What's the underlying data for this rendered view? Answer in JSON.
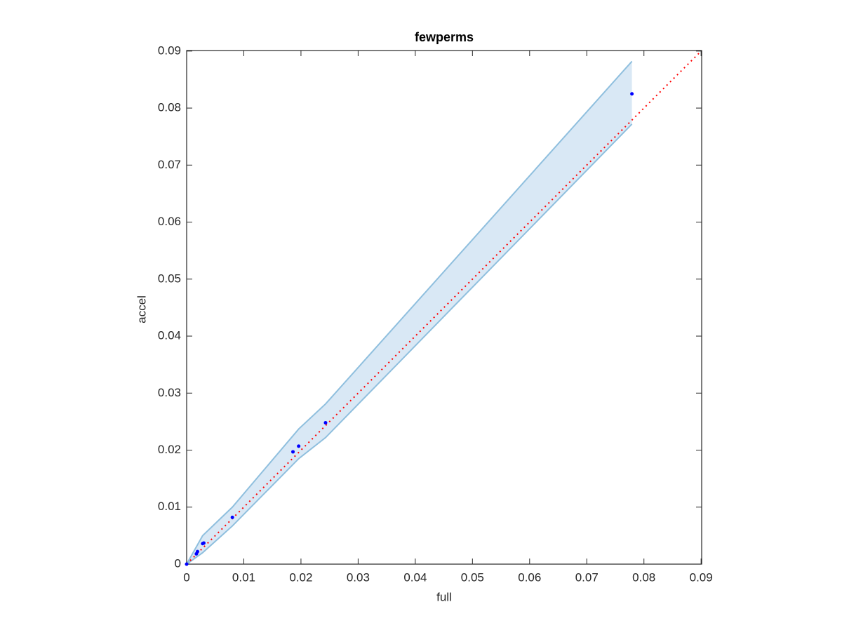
{
  "chart_data": {
    "type": "scatter",
    "title": "fewperms",
    "x_label": "full",
    "y_label": "accel",
    "xlim": [
      0,
      0.0901
    ],
    "ylim": [
      0,
      0.0901
    ],
    "xticks": [
      0,
      0.01,
      0.02,
      0.03,
      0.04,
      0.05,
      0.06,
      0.07,
      0.08,
      0.09
    ],
    "yticks": [
      0,
      0.01,
      0.02,
      0.03,
      0.04,
      0.05,
      0.06,
      0.07,
      0.08,
      0.09
    ],
    "band": {
      "color": "#8fbfde",
      "x": [
        0,
        0.0028,
        0.008,
        0.0196,
        0.0243,
        0.0779
      ],
      "lower": [
        0,
        0.002,
        0.0067,
        0.0185,
        0.0222,
        0.0772
      ],
      "upper": [
        0,
        0.005,
        0.01,
        0.0237,
        0.0281,
        0.0882
      ]
    },
    "reference": {
      "color": "#ff0000",
      "x": [
        0,
        0.0901
      ],
      "values": [
        0,
        0.0901
      ]
    },
    "series": [
      {
        "color": "#0000ff",
        "x": [
          0,
          0.0017,
          0.0019,
          0.0028,
          0.003,
          0.008,
          0.0186,
          0.0196,
          0.0243,
          0.0779
        ],
        "values": [
          0,
          0.0018,
          0.0022,
          0.0036,
          0.0037,
          0.0082,
          0.0197,
          0.0207,
          0.0248,
          0.0825
        ]
      }
    ]
  }
}
